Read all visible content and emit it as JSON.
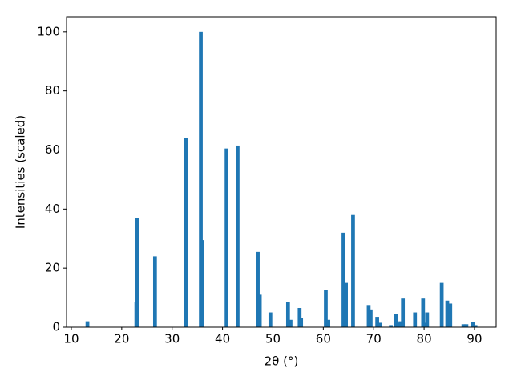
{
  "chart_data": {
    "type": "bar",
    "x_label": "2θ (°)",
    "y_label": "Intensities (scaled)",
    "color": "#1f77b4",
    "x": [
      13.2,
      22.9,
      23.1,
      26.6,
      32.8,
      35.7,
      36.0,
      40.8,
      43.0,
      47.0,
      47.4,
      49.5,
      53.0,
      53.5,
      55.3,
      55.6,
      60.5,
      61.0,
      64.0,
      64.5,
      65.9,
      69.0,
      69.4,
      70.7,
      71.2,
      73.4,
      74.4,
      74.9,
      75.3,
      75.8,
      78.2,
      79.8,
      80.3,
      80.6,
      83.5,
      84.6,
      85.2,
      87.8,
      88.4,
      89.7,
      90.2
    ],
    "values": [
      2,
      8.5,
      37,
      24,
      64,
      100,
      29.5,
      60.5,
      61.5,
      25.5,
      11,
      5,
      8.5,
      2.5,
      6.5,
      3,
      12.5,
      2.5,
      32,
      15,
      38,
      7.5,
      6,
      3.5,
      1.5,
      0.7,
      4.5,
      1.5,
      2,
      9.7,
      5,
      9.7,
      1.5,
      5,
      15,
      9,
      8,
      1,
      1,
      1.8,
      0.7
    ],
    "xlim": [
      9.05,
      94.3
    ],
    "ylim": [
      0,
      105.1
    ],
    "xticks": [
      10,
      20,
      30,
      40,
      50,
      60,
      70,
      80,
      90
    ],
    "yticks": [
      0,
      20,
      40,
      60,
      80,
      100
    ],
    "grid": false
  }
}
